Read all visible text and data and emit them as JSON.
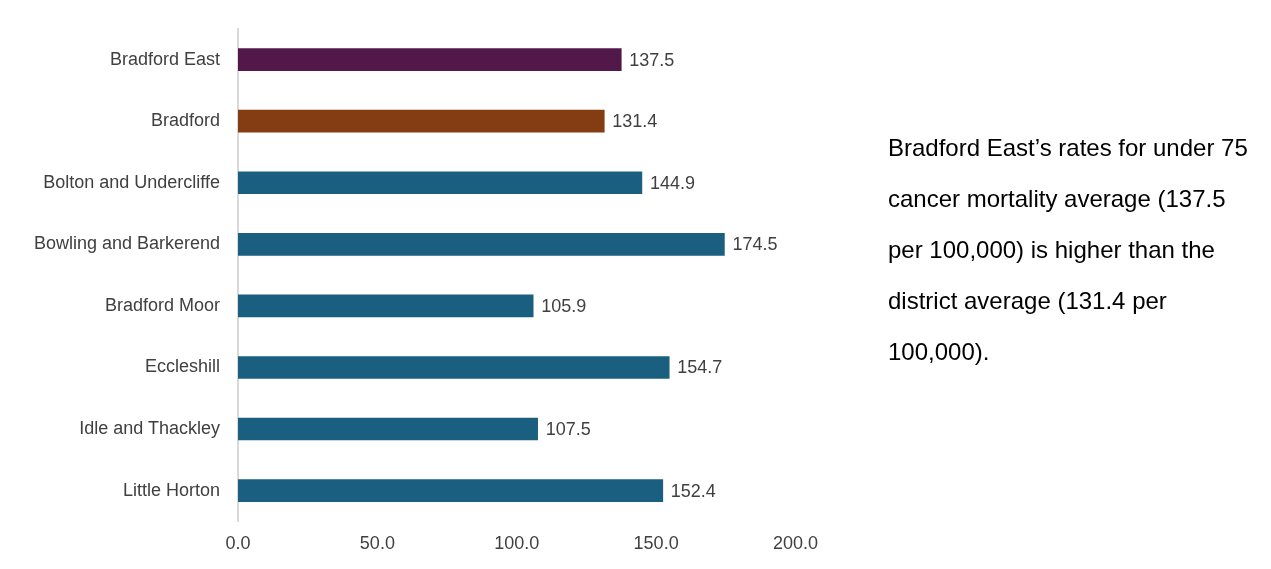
{
  "chart_data": {
    "type": "bar",
    "orientation": "horizontal",
    "categories": [
      "Bradford East",
      "Bradford",
      "Bolton and Undercliffe",
      "Bowling and Barkerend",
      "Bradford Moor",
      "Eccleshill",
      "Idle and Thackley",
      "Little Horton"
    ],
    "values": [
      137.5,
      131.4,
      144.9,
      174.5,
      105.9,
      154.7,
      107.5,
      152.4
    ],
    "colors": [
      "#521849",
      "#843c12",
      "#1a5e80",
      "#1a5e80",
      "#1a5e80",
      "#1a5e80",
      "#1a5e80",
      "#1a5e80"
    ],
    "xlim": [
      0,
      200
    ],
    "xticks": [
      {
        "value": 0,
        "label": "0.0"
      },
      {
        "value": 50,
        "label": "50.0"
      },
      {
        "value": 100,
        "label": "100.0"
      },
      {
        "value": 150,
        "label": "150.0"
      },
      {
        "value": 200,
        "label": "200.0"
      }
    ],
    "data_labels": true,
    "annotations": [
      "Bradford East’s rates for under 75 cancer mortality average (137.5 per 100,000) is higher than the district average (131.4 per 100,000)."
    ]
  }
}
